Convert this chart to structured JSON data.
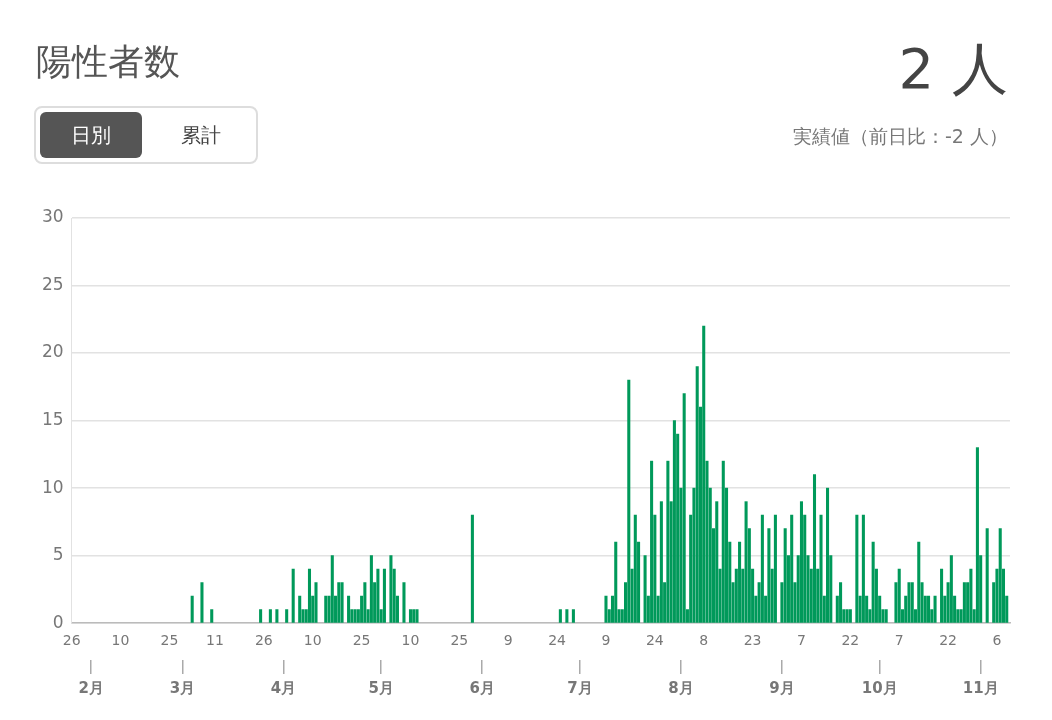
{
  "chart_data": {
    "type": "bar",
    "title": "陽性者数",
    "annotations": [
      "2 人",
      "実績値（前日比：-2 人）",
      "日別",
      "累計"
    ],
    "series": [
      {
        "color": "#00995a",
        "x": [
          "--03-04",
          "--03-07",
          "--03-10",
          "--03-25",
          "--03-28",
          "--03-30",
          "--04-02",
          "--04-04",
          "--04-06",
          "--04-07",
          "--04-08",
          "--04-09",
          "--04-10",
          "--04-11",
          "--04-14",
          "--04-15",
          "--04-16",
          "--04-17",
          "--04-18",
          "--04-19",
          "--04-21",
          "--04-22",
          "--04-23",
          "--04-24",
          "--04-25",
          "--04-26",
          "--04-27",
          "--04-28",
          "--04-29",
          "--04-30",
          "--05-01",
          "--05-02",
          "--05-04",
          "--05-05",
          "--05-06",
          "--05-08",
          "--05-10",
          "--05-11",
          "--05-12",
          "--05-29",
          "--06-25",
          "--06-27",
          "--06-29",
          "--07-09",
          "--07-10",
          "--07-11",
          "--07-12",
          "--07-13",
          "--07-14",
          "--07-15",
          "--07-16",
          "--07-17",
          "--07-18",
          "--07-19",
          "--07-21",
          "--07-22",
          "--07-23",
          "--07-24",
          "--07-25",
          "--07-26",
          "--07-27",
          "--07-28",
          "--07-29",
          "--07-30",
          "--07-31",
          "--08-01",
          "--08-02",
          "--08-03",
          "--08-04",
          "--08-05",
          "--08-06",
          "--08-07",
          "--08-08",
          "--08-09",
          "--08-10",
          "--08-11",
          "--08-12",
          "--08-13",
          "--08-14",
          "--08-15",
          "--08-16",
          "--08-17",
          "--08-18",
          "--08-19",
          "--08-20",
          "--08-21",
          "--08-22",
          "--08-23",
          "--08-24",
          "--08-25",
          "--08-26",
          "--08-27",
          "--08-28",
          "--08-29",
          "--08-30",
          "--09-01",
          "--09-02",
          "--09-03",
          "--09-04",
          "--09-05",
          "--09-06",
          "--09-07",
          "--09-08",
          "--09-09",
          "--09-10",
          "--09-11",
          "--09-12",
          "--09-13",
          "--09-14",
          "--09-15",
          "--09-16",
          "--09-18",
          "--09-19",
          "--09-20",
          "--09-21",
          "--09-22",
          "--09-24",
          "--09-25",
          "--09-26",
          "--09-27",
          "--09-28",
          "--09-29",
          "--09-30",
          "--10-01",
          "--10-02",
          "--10-03",
          "--10-06",
          "--10-07",
          "--10-08",
          "--10-09",
          "--10-10",
          "--10-11",
          "--10-12",
          "--10-13",
          "--10-14",
          "--10-15",
          "--10-16",
          "--10-17",
          "--10-18",
          "--10-20",
          "--10-21",
          "--10-22",
          "--10-23",
          "--10-24",
          "--10-25",
          "--10-26",
          "--10-27",
          "--10-28",
          "--10-29",
          "--10-30",
          "--10-31",
          "--11-01",
          "--11-03",
          "--11-05",
          "--11-06",
          "--11-07",
          "--11-08",
          "--11-09"
        ],
        "values": [
          2,
          3,
          1,
          1,
          1,
          1,
          1,
          4,
          2,
          1,
          1,
          4,
          2,
          3,
          2,
          2,
          5,
          2,
          3,
          3,
          2,
          1,
          1,
          1,
          2,
          3,
          1,
          5,
          3,
          4,
          1,
          4,
          5,
          4,
          2,
          3,
          1,
          1,
          1,
          8,
          1,
          1,
          1,
          2,
          1,
          2,
          6,
          1,
          1,
          3,
          18,
          4,
          8,
          6,
          5,
          2,
          12,
          8,
          2,
          9,
          3,
          12,
          9,
          15,
          14,
          10,
          17,
          1,
          8,
          10,
          19,
          16,
          22,
          12,
          10,
          7,
          9,
          4,
          12,
          10,
          6,
          3,
          4,
          6,
          4,
          9,
          7,
          4,
          2,
          3,
          8,
          2,
          7,
          4,
          8,
          3,
          7,
          5,
          8,
          3,
          5,
          9,
          8,
          5,
          4,
          11,
          4,
          8,
          2,
          10,
          5,
          2,
          3,
          1,
          1,
          1,
          8,
          2,
          8,
          2,
          1,
          6,
          4,
          2,
          1,
          1,
          3,
          4,
          1,
          2,
          3,
          3,
          1,
          6,
          3,
          2,
          2,
          1,
          2,
          4,
          2,
          3,
          5,
          2,
          1,
          1,
          3,
          3,
          4,
          1,
          13,
          5,
          7,
          3,
          4,
          7,
          4,
          2
        ]
      }
    ],
    "xlim": [
      "--01-26",
      "--11-10"
    ],
    "xticks": [
      {
        "value": "--01-26",
        "label": "26"
      },
      {
        "value": "--02-10",
        "label": "10"
      },
      {
        "value": "--02-25",
        "label": "25"
      },
      {
        "value": "--03-11",
        "label": "11"
      },
      {
        "value": "--03-26",
        "label": "26"
      },
      {
        "value": "--04-10",
        "label": "10"
      },
      {
        "value": "--04-25",
        "label": "25"
      },
      {
        "value": "--05-10",
        "label": "10"
      },
      {
        "value": "--05-25",
        "label": "25"
      },
      {
        "value": "--06-09",
        "label": "9"
      },
      {
        "value": "--06-24",
        "label": "24"
      },
      {
        "value": "--07-09",
        "label": "9"
      },
      {
        "value": "--07-24",
        "label": "24"
      },
      {
        "value": "--08-08",
        "label": "8"
      },
      {
        "value": "--08-23",
        "label": "23"
      },
      {
        "value": "--09-07",
        "label": "7"
      },
      {
        "value": "--09-22",
        "label": "22"
      },
      {
        "value": "--10-07",
        "label": "7"
      },
      {
        "value": "--10-22",
        "label": "22"
      },
      {
        "value": "--11-06",
        "label": "6"
      }
    ],
    "x2lim": [
      "--01-26",
      "--11-10"
    ],
    "x2ticks": [
      {
        "value": "--02-01",
        "label": "2月"
      },
      {
        "value": "--03-01",
        "label": "3月"
      },
      {
        "value": "--04-01",
        "label": "4月"
      },
      {
        "value": "--05-01",
        "label": "5月"
      },
      {
        "value": "--06-01",
        "label": "6月"
      },
      {
        "value": "--07-01",
        "label": "7月"
      },
      {
        "value": "--08-01",
        "label": "8月"
      },
      {
        "value": "--09-01",
        "label": "9月"
      },
      {
        "value": "--10-01",
        "label": "10月"
      },
      {
        "value": "--11-01",
        "label": "11月"
      }
    ],
    "ylim": [
      0,
      30
    ],
    "yticks": [
      0,
      5,
      10,
      15,
      20,
      25,
      30
    ],
    "grid": "y"
  }
}
